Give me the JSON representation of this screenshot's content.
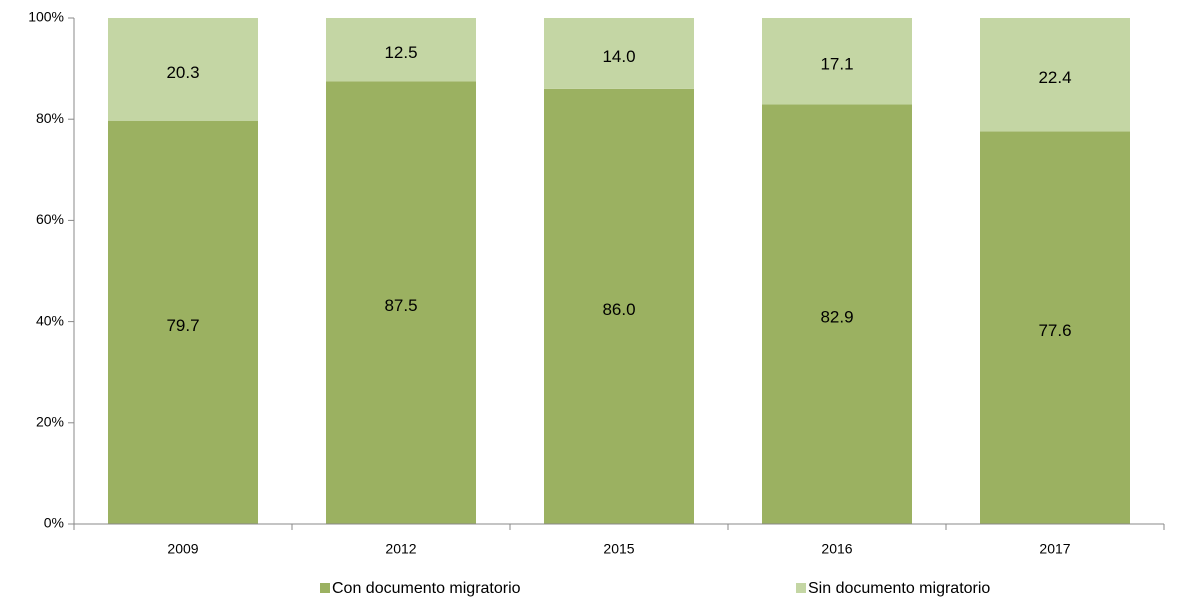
{
  "chart_data": {
    "type": "stacked_bar",
    "categories": [
      "2009",
      "2012",
      "2015",
      "2016",
      "2017"
    ],
    "series": [
      {
        "name": "Con documento migratorio",
        "color": "#9bb161",
        "values": [
          79.7,
          87.5,
          86.0,
          82.9,
          77.6
        ],
        "value_labels": [
          "79.7",
          "87.5",
          "86.0",
          "82.9",
          "77.6"
        ]
      },
      {
        "name": "Sin documento migratorio",
        "color": "#c4d6a4",
        "values": [
          20.3,
          12.5,
          14.0,
          17.1,
          22.4
        ],
        "value_labels": [
          "20.3",
          "12.5",
          "14.0",
          "17.1",
          "22.4"
        ]
      }
    ],
    "ylim": [
      0,
      100
    ],
    "yticks": [
      {
        "value": 0,
        "label": "0%"
      },
      {
        "value": 20,
        "label": "20%"
      },
      {
        "value": 40,
        "label": "40%"
      },
      {
        "value": 60,
        "label": "60%"
      },
      {
        "value": 80,
        "label": "80%"
      },
      {
        "value": 100,
        "label": "100%"
      }
    ],
    "grid": false,
    "legend": "bottom"
  }
}
